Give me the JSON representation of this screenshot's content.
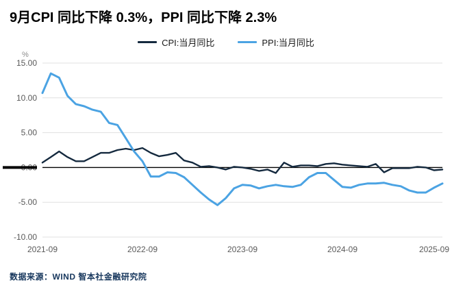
{
  "title": "9月CPI 同比下降 0.3%，PPI 同比下降 2.3%",
  "unit_label": "%",
  "footer": "数据来源：WIND 智本社金融研究院",
  "legend": [
    {
      "label": "CPI:当月同比",
      "color": "#14293e"
    },
    {
      "label": "PPI:当月同比",
      "color": "#4ba3e3"
    }
  ],
  "chart_data": {
    "type": "line",
    "title": "9月CPI 同比下降 0.3%，PPI 同比下降 2.3%",
    "xlabel": "",
    "ylabel": "%",
    "ylim": [
      -10,
      15
    ],
    "grid": true,
    "legend_position": "top",
    "yticks": [
      15,
      10,
      5,
      0,
      -5,
      -10
    ],
    "ytick_labels": [
      "15.00",
      "10.00",
      "5.00",
      "0.00",
      "-5.00",
      "-10.00"
    ],
    "xticks": [
      {
        "index": 0,
        "label": "2021-09"
      },
      {
        "index": 12,
        "label": "2022-09"
      },
      {
        "index": 24,
        "label": "2023-09"
      },
      {
        "index": 36,
        "label": "2024-09"
      },
      {
        "index": 48,
        "label": "2025-09"
      }
    ],
    "x": [
      "2021-09",
      "2021-10",
      "2021-11",
      "2021-12",
      "2022-01",
      "2022-02",
      "2022-03",
      "2022-04",
      "2022-05",
      "2022-06",
      "2022-07",
      "2022-08",
      "2022-09",
      "2022-10",
      "2022-11",
      "2022-12",
      "2023-01",
      "2023-02",
      "2023-03",
      "2023-04",
      "2023-05",
      "2023-06",
      "2023-07",
      "2023-08",
      "2023-09",
      "2023-10",
      "2023-11",
      "2023-12",
      "2024-01",
      "2024-02",
      "2024-03",
      "2024-04",
      "2024-05",
      "2024-06",
      "2024-07",
      "2024-08",
      "2024-09",
      "2024-10",
      "2024-11",
      "2024-12",
      "2025-01",
      "2025-02",
      "2025-03",
      "2025-04",
      "2025-05",
      "2025-06",
      "2025-07",
      "2025-08",
      "2025-09"
    ],
    "series": [
      {
        "name": "CPI:当月同比",
        "color": "#14293e",
        "width": 2.4,
        "values": [
          0.7,
          1.5,
          2.3,
          1.5,
          0.9,
          0.9,
          1.5,
          2.1,
          2.1,
          2.5,
          2.7,
          2.5,
          2.8,
          2.1,
          1.6,
          1.8,
          2.1,
          1.0,
          0.7,
          0.1,
          0.2,
          0.0,
          -0.3,
          0.1,
          0.0,
          -0.2,
          -0.5,
          -0.3,
          -0.8,
          0.7,
          0.1,
          0.3,
          0.3,
          0.2,
          0.5,
          0.6,
          0.4,
          0.3,
          0.2,
          0.1,
          0.5,
          -0.7,
          -0.1,
          -0.1,
          -0.1,
          0.1,
          0.0,
          -0.4,
          -0.3
        ]
      },
      {
        "name": "PPI:当月同比",
        "color": "#4ba3e3",
        "width": 3,
        "values": [
          10.7,
          13.5,
          12.9,
          10.3,
          9.1,
          8.8,
          8.3,
          8.0,
          6.4,
          6.1,
          4.2,
          2.3,
          0.9,
          -1.3,
          -1.3,
          -0.7,
          -0.8,
          -1.4,
          -2.5,
          -3.6,
          -4.6,
          -5.4,
          -4.4,
          -3.0,
          -2.5,
          -2.6,
          -3.0,
          -2.7,
          -2.5,
          -2.7,
          -2.8,
          -2.5,
          -1.4,
          -0.8,
          -0.8,
          -1.8,
          -2.8,
          -2.9,
          -2.5,
          -2.3,
          -2.3,
          -2.2,
          -2.5,
          -2.7,
          -3.3,
          -3.6,
          -3.6,
          -2.9,
          -2.3
        ]
      }
    ]
  }
}
